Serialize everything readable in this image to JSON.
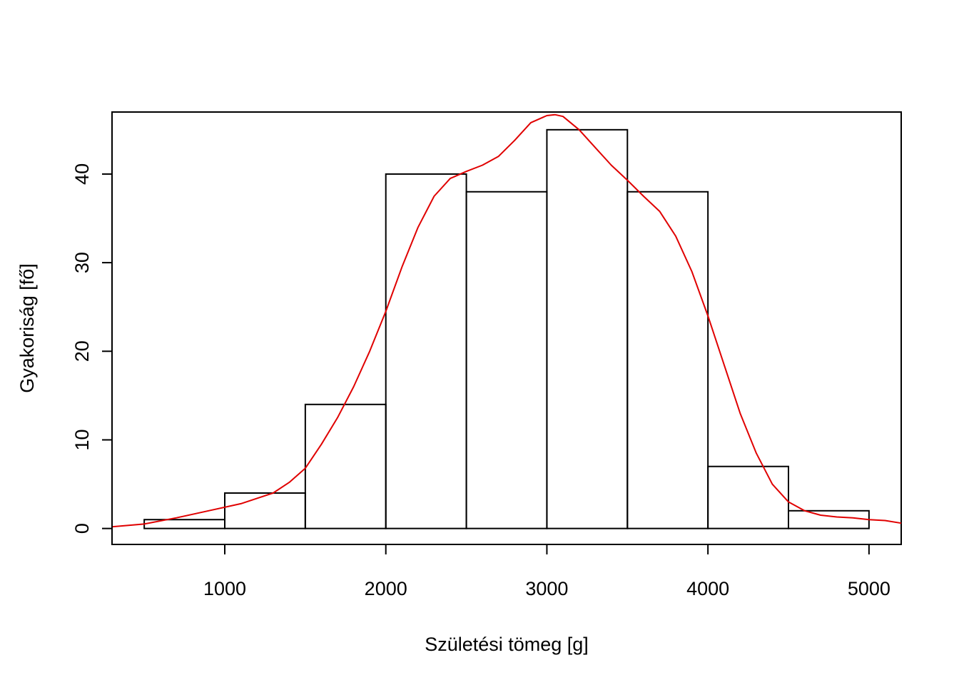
{
  "chart_data": {
    "type": "histogram",
    "title": "",
    "xlabel": "Születési tömeg [g]",
    "ylabel": "Gyakoriság [fő]",
    "xlim": [
      300,
      5200
    ],
    "ylim": [
      -1.8,
      47
    ],
    "x_ticks": [
      1000,
      2000,
      3000,
      4000,
      5000
    ],
    "y_ticks": [
      0,
      10,
      20,
      30,
      40
    ],
    "grid": false,
    "bins": [
      {
        "start": 500,
        "end": 1000,
        "count": 1
      },
      {
        "start": 1000,
        "end": 1500,
        "count": 4
      },
      {
        "start": 1500,
        "end": 2000,
        "count": 14
      },
      {
        "start": 2000,
        "end": 2500,
        "count": 40
      },
      {
        "start": 2500,
        "end": 3000,
        "count": 38
      },
      {
        "start": 3000,
        "end": 3500,
        "count": 45
      },
      {
        "start": 3500,
        "end": 4000,
        "count": 38
      },
      {
        "start": 4000,
        "end": 4500,
        "count": 7
      },
      {
        "start": 4500,
        "end": 5000,
        "count": 2
      }
    ],
    "density_curve": {
      "color": "#e00000",
      "x": [
        300,
        500,
        700,
        900,
        1100,
        1300,
        1400,
        1500,
        1600,
        1700,
        1800,
        1900,
        2000,
        2100,
        2200,
        2300,
        2400,
        2500,
        2600,
        2700,
        2800,
        2900,
        3000,
        3050,
        3100,
        3200,
        3300,
        3400,
        3500,
        3600,
        3700,
        3800,
        3900,
        4000,
        4100,
        4200,
        4300,
        4400,
        4500,
        4600,
        4700,
        4800,
        4900,
        5000,
        5100,
        5200
      ],
      "y": [
        0.2,
        0.5,
        1.2,
        2.0,
        2.8,
        4.0,
        5.2,
        6.8,
        9.5,
        12.5,
        16.0,
        20.0,
        24.5,
        29.5,
        34.0,
        37.5,
        39.5,
        40.3,
        41.0,
        42.0,
        43.8,
        45.8,
        46.6,
        46.7,
        46.5,
        45.0,
        43.0,
        41.0,
        39.3,
        37.5,
        35.8,
        33.0,
        29.0,
        24.0,
        18.5,
        13.0,
        8.5,
        5.0,
        3.0,
        2.0,
        1.5,
        1.3,
        1.2,
        1.0,
        0.9,
        0.6
      ]
    }
  }
}
